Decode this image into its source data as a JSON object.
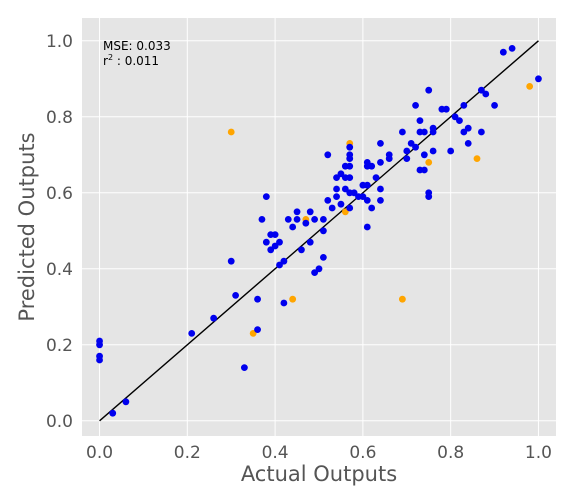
{
  "chart_data": {
    "type": "scatter",
    "xlabel": "Actual Outputs",
    "ylabel": "Predicted Outputs",
    "xlim": [
      -0.04,
      1.04
    ],
    "ylim": [
      -0.04,
      1.06
    ],
    "xticks": [
      0.0,
      0.2,
      0.4,
      0.6,
      0.8,
      1.0
    ],
    "yticks": [
      0.0,
      0.2,
      0.4,
      0.6,
      0.8,
      1.0
    ],
    "xtick_labels": [
      "0.0",
      "0.2",
      "0.4",
      "0.6",
      "0.8",
      "1.0"
    ],
    "ytick_labels": [
      "0.0",
      "0.2",
      "0.4",
      "0.6",
      "0.8",
      "1.0"
    ],
    "grid": true,
    "annotation": {
      "mse_label": "MSE: 0.033",
      "r2_base": "r",
      "r2_sup": "2",
      "r2_value": " : 0.011"
    },
    "reference_line": {
      "x": [
        0.0,
        1.0
      ],
      "y": [
        0.0,
        1.0
      ],
      "color": "#000000"
    },
    "series": [
      {
        "color": "#0000ee",
        "points": [
          [
            0.0,
            0.21
          ],
          [
            0.0,
            0.2
          ],
          [
            0.0,
            0.17
          ],
          [
            0.0,
            0.16
          ],
          [
            0.03,
            0.02
          ],
          [
            0.06,
            0.05
          ],
          [
            0.21,
            0.23
          ],
          [
            0.26,
            0.27
          ],
          [
            0.3,
            0.42
          ],
          [
            0.31,
            0.33
          ],
          [
            0.33,
            0.14
          ],
          [
            0.36,
            0.32
          ],
          [
            0.36,
            0.24
          ],
          [
            0.37,
            0.53
          ],
          [
            0.38,
            0.59
          ],
          [
            0.38,
            0.47
          ],
          [
            0.39,
            0.49
          ],
          [
            0.39,
            0.45
          ],
          [
            0.4,
            0.46
          ],
          [
            0.4,
            0.49
          ],
          [
            0.41,
            0.47
          ],
          [
            0.41,
            0.41
          ],
          [
            0.42,
            0.42
          ],
          [
            0.42,
            0.31
          ],
          [
            0.43,
            0.53
          ],
          [
            0.44,
            0.51
          ],
          [
            0.45,
            0.55
          ],
          [
            0.45,
            0.53
          ],
          [
            0.46,
            0.45
          ],
          [
            0.47,
            0.52
          ],
          [
            0.48,
            0.55
          ],
          [
            0.48,
            0.47
          ],
          [
            0.49,
            0.53
          ],
          [
            0.49,
            0.39
          ],
          [
            0.5,
            0.4
          ],
          [
            0.51,
            0.53
          ],
          [
            0.51,
            0.5
          ],
          [
            0.51,
            0.43
          ],
          [
            0.52,
            0.7
          ],
          [
            0.52,
            0.58
          ],
          [
            0.53,
            0.56
          ],
          [
            0.54,
            0.64
          ],
          [
            0.54,
            0.61
          ],
          [
            0.54,
            0.59
          ],
          [
            0.55,
            0.57
          ],
          [
            0.55,
            0.65
          ],
          [
            0.56,
            0.67
          ],
          [
            0.56,
            0.64
          ],
          [
            0.56,
            0.61
          ],
          [
            0.57,
            0.72
          ],
          [
            0.57,
            0.7
          ],
          [
            0.57,
            0.69
          ],
          [
            0.57,
            0.67
          ],
          [
            0.57,
            0.64
          ],
          [
            0.57,
            0.6
          ],
          [
            0.57,
            0.56
          ],
          [
            0.58,
            0.6
          ],
          [
            0.59,
            0.59
          ],
          [
            0.6,
            0.59
          ],
          [
            0.6,
            0.62
          ],
          [
            0.61,
            0.68
          ],
          [
            0.61,
            0.67
          ],
          [
            0.61,
            0.62
          ],
          [
            0.61,
            0.58
          ],
          [
            0.61,
            0.51
          ],
          [
            0.62,
            0.67
          ],
          [
            0.62,
            0.56
          ],
          [
            0.63,
            0.64
          ],
          [
            0.64,
            0.73
          ],
          [
            0.64,
            0.68
          ],
          [
            0.64,
            0.61
          ],
          [
            0.64,
            0.58
          ],
          [
            0.66,
            0.7
          ],
          [
            0.66,
            0.69
          ],
          [
            0.69,
            0.76
          ],
          [
            0.7,
            0.71
          ],
          [
            0.7,
            0.69
          ],
          [
            0.71,
            0.73
          ],
          [
            0.72,
            0.83
          ],
          [
            0.72,
            0.72
          ],
          [
            0.73,
            0.79
          ],
          [
            0.73,
            0.76
          ],
          [
            0.73,
            0.66
          ],
          [
            0.74,
            0.76
          ],
          [
            0.74,
            0.7
          ],
          [
            0.74,
            0.66
          ],
          [
            0.75,
            0.87
          ],
          [
            0.75,
            0.6
          ],
          [
            0.75,
            0.59
          ],
          [
            0.76,
            0.77
          ],
          [
            0.76,
            0.76
          ],
          [
            0.76,
            0.71
          ],
          [
            0.78,
            0.82
          ],
          [
            0.79,
            0.82
          ],
          [
            0.8,
            0.71
          ],
          [
            0.81,
            0.8
          ],
          [
            0.82,
            0.79
          ],
          [
            0.83,
            0.83
          ],
          [
            0.83,
            0.76
          ],
          [
            0.84,
            0.77
          ],
          [
            0.84,
            0.73
          ],
          [
            0.87,
            0.87
          ],
          [
            0.87,
            0.76
          ],
          [
            0.88,
            0.86
          ],
          [
            0.9,
            0.83
          ],
          [
            0.92,
            0.97
          ],
          [
            0.94,
            0.98
          ],
          [
            1.0,
            0.9
          ]
        ]
      },
      {
        "color": "#ffa500",
        "points": [
          [
            0.3,
            0.76
          ],
          [
            0.35,
            0.23
          ],
          [
            0.44,
            0.32
          ],
          [
            0.47,
            0.53
          ],
          [
            0.56,
            0.55
          ],
          [
            0.57,
            0.73
          ],
          [
            0.69,
            0.32
          ],
          [
            0.75,
            0.68
          ],
          [
            0.86,
            0.69
          ],
          [
            0.98,
            0.88
          ]
        ]
      }
    ]
  }
}
